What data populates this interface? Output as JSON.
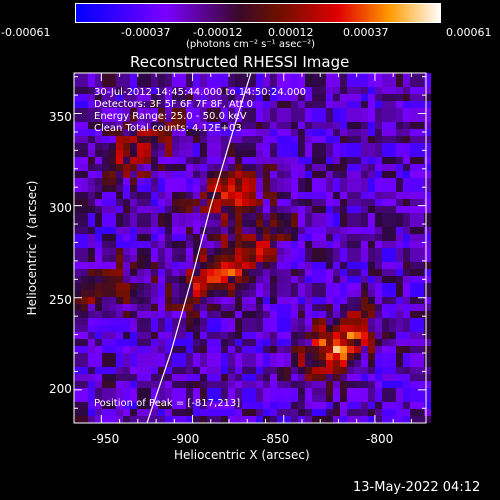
{
  "colorbar": {
    "tick_labels": [
      "-0.00061",
      "-0.00037",
      "-0.00012",
      "0.00012",
      "0.00037",
      "0.00061"
    ],
    "unit_label": "(photons cm⁻² s⁻¹ asec⁻²)"
  },
  "plot": {
    "title": "Reconstructed RHESSI Image",
    "annotations": [
      "30-Jul-2012 14:45:44.000 to 14:50:24.000",
      "Detectors: 3F 5F 6F 7F 8F, Att 0",
      "Energy Range: 25.0 - 50.0 keV",
      "Clean     Total counts: 4.12E+03"
    ],
    "peak_label": "Position of Peak = [-817,213]",
    "footer": "13-May-2022 04:12"
  },
  "chart_data": {
    "type": "heatmap",
    "title": "Reconstructed RHESSI Image",
    "xlabel": "Heliocentric X (arcsec)",
    "ylabel": "Heliocentric Y (arcsec)",
    "xlim": [
      -965,
      -772
    ],
    "ylim": [
      182,
      372
    ],
    "x_ticks": [
      -950,
      -900,
      -850,
      -800
    ],
    "y_ticks": [
      200,
      250,
      300,
      350
    ],
    "color_range": [
      -0.00061,
      0.00061
    ],
    "colormap": [
      "#0000ff",
      "#7a00ff",
      "#2a0838",
      "#6a1000",
      "#e00000",
      "#ff8a00",
      "#ffffff"
    ],
    "peak_position": [
      -817,
      213
    ],
    "sources": [
      {
        "x": -820,
        "y": 225,
        "peak": 0.00061
      },
      {
        "x": -888,
        "y": 262,
        "peak": 0.00045
      },
      {
        "x": -880,
        "y": 305,
        "peak": 0.0004
      },
      {
        "x": -930,
        "y": 330,
        "peak": 0.0004
      },
      {
        "x": -945,
        "y": 255,
        "peak": 0.0003
      },
      {
        "x": -865,
        "y": 280,
        "peak": 0.0003
      }
    ],
    "limb_curve": [
      [
        -925,
        182
      ],
      [
        -912,
        220
      ],
      [
        -900,
        262
      ],
      [
        -890,
        300
      ],
      [
        -878,
        340
      ],
      [
        -868,
        372
      ]
    ]
  }
}
